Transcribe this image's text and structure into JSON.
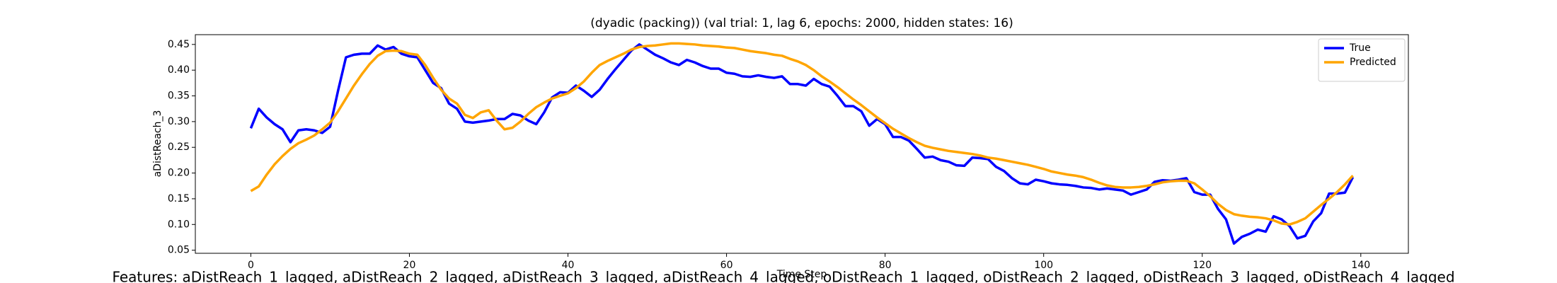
{
  "chart_data": {
    "type": "line",
    "title": "(dyadic (packing)) (val trial: 1, lag 6, epochs: 2000, hidden states: 16)",
    "xlabel": "Time Step",
    "ylabel": "aDistReach_3",
    "caption": "Features: aDistReach_1_lagged, aDistReach_2_lagged, aDistReach_3_lagged, aDistReach_4_lagged, oDistReach_1_lagged, oDistReach_2_lagged, oDistReach_3_lagged, oDistReach_4_lagged",
    "legend": "upper right",
    "xlim": [
      -7,
      146
    ],
    "ylim": [
      0.044,
      0.469
    ],
    "xticks": [
      0,
      20,
      40,
      60,
      80,
      100,
      120,
      140
    ],
    "yticks": [
      0.05,
      {
        "value": 0.1,
        "label": "0.10"
      },
      0.15,
      {
        "value": 0.2,
        "label": "0.20"
      },
      0.25,
      {
        "value": 0.3,
        "label": "0.30"
      },
      0.35,
      {
        "value": 0.4,
        "label": "0.40"
      },
      0.45
    ],
    "x": [
      0,
      1,
      2,
      3,
      4,
      5,
      6,
      7,
      8,
      9,
      10,
      11,
      12,
      13,
      14,
      15,
      16,
      17,
      18,
      19,
      20,
      21,
      22,
      23,
      24,
      25,
      26,
      27,
      28,
      29,
      30,
      31,
      32,
      33,
      34,
      35,
      36,
      37,
      38,
      39,
      40,
      41,
      42,
      43,
      44,
      45,
      46,
      47,
      48,
      49,
      50,
      51,
      52,
      53,
      54,
      55,
      56,
      57,
      58,
      59,
      60,
      61,
      62,
      63,
      64,
      65,
      66,
      67,
      68,
      69,
      70,
      71,
      72,
      73,
      74,
      75,
      76,
      77,
      78,
      79,
      80,
      81,
      82,
      83,
      84,
      85,
      86,
      87,
      88,
      89,
      90,
      91,
      92,
      93,
      94,
      95,
      96,
      97,
      98,
      99,
      100,
      101,
      102,
      103,
      104,
      105,
      106,
      107,
      108,
      109,
      110,
      111,
      112,
      113,
      114,
      115,
      116,
      117,
      118,
      119,
      120,
      121,
      122,
      123,
      124,
      125,
      126,
      127,
      128,
      129,
      130,
      131,
      132,
      133,
      134,
      135,
      136,
      137,
      138,
      139
    ],
    "series": [
      {
        "name": "True",
        "color": "#0000ff",
        "values": [
          0.287,
          0.325,
          0.308,
          0.295,
          0.285,
          0.26,
          0.283,
          0.285,
          0.283,
          0.278,
          0.29,
          0.36,
          0.425,
          0.43,
          0.432,
          0.432,
          0.448,
          0.44,
          0.445,
          0.432,
          0.427,
          0.425,
          0.4,
          0.375,
          0.365,
          0.335,
          0.325,
          0.3,
          0.298,
          0.3,
          0.302,
          0.305,
          0.305,
          0.315,
          0.312,
          0.302,
          0.295,
          0.318,
          0.347,
          0.357,
          0.356,
          0.37,
          0.36,
          0.348,
          0.362,
          0.383,
          0.402,
          0.42,
          0.438,
          0.45,
          0.44,
          0.43,
          0.423,
          0.415,
          0.41,
          0.42,
          0.415,
          0.408,
          0.403,
          0.403,
          0.395,
          0.393,
          0.388,
          0.387,
          0.39,
          0.387,
          0.385,
          0.388,
          0.373,
          0.373,
          0.37,
          0.383,
          0.373,
          0.368,
          0.35,
          0.33,
          0.33,
          0.32,
          0.292,
          0.305,
          0.295,
          0.27,
          0.27,
          0.263,
          0.247,
          0.23,
          0.232,
          0.225,
          0.222,
          0.215,
          0.214,
          0.23,
          0.229,
          0.227,
          0.212,
          0.204,
          0.19,
          0.18,
          0.178,
          0.187,
          0.184,
          0.18,
          0.178,
          0.177,
          0.175,
          0.172,
          0.171,
          0.168,
          0.17,
          0.168,
          0.166,
          0.158,
          0.163,
          0.168,
          0.183,
          0.186,
          0.185,
          0.187,
          0.19,
          0.163,
          0.158,
          0.158,
          0.13,
          0.11,
          0.063,
          0.076,
          0.082,
          0.09,
          0.086,
          0.116,
          0.11,
          0.097,
          0.073,
          0.078,
          0.106,
          0.122,
          0.16,
          0.16,
          0.162,
          0.192
        ]
      },
      {
        "name": "Predicted",
        "color": "#ffa500",
        "values": [
          0.165,
          0.174,
          0.197,
          0.217,
          0.233,
          0.247,
          0.258,
          0.265,
          0.273,
          0.285,
          0.298,
          0.32,
          0.345,
          0.37,
          0.392,
          0.412,
          0.428,
          0.437,
          0.438,
          0.437,
          0.432,
          0.43,
          0.41,
          0.385,
          0.362,
          0.345,
          0.335,
          0.313,
          0.307,
          0.318,
          0.322,
          0.302,
          0.285,
          0.288,
          0.3,
          0.315,
          0.328,
          0.337,
          0.345,
          0.35,
          0.355,
          0.365,
          0.378,
          0.395,
          0.41,
          0.418,
          0.425,
          0.432,
          0.44,
          0.445,
          0.447,
          0.448,
          0.45,
          0.452,
          0.452,
          0.451,
          0.45,
          0.448,
          0.447,
          0.446,
          0.444,
          0.443,
          0.44,
          0.437,
          0.435,
          0.433,
          0.43,
          0.428,
          0.422,
          0.417,
          0.41,
          0.4,
          0.388,
          0.378,
          0.367,
          0.355,
          0.343,
          0.332,
          0.32,
          0.308,
          0.297,
          0.286,
          0.277,
          0.268,
          0.26,
          0.253,
          0.249,
          0.246,
          0.243,
          0.241,
          0.239,
          0.237,
          0.234,
          0.23,
          0.228,
          0.225,
          0.222,
          0.219,
          0.216,
          0.212,
          0.208,
          0.203,
          0.2,
          0.197,
          0.195,
          0.192,
          0.187,
          0.181,
          0.176,
          0.173,
          0.172,
          0.172,
          0.173,
          0.175,
          0.178,
          0.182,
          0.184,
          0.185,
          0.185,
          0.18,
          0.168,
          0.155,
          0.14,
          0.128,
          0.12,
          0.117,
          0.115,
          0.114,
          0.112,
          0.108,
          0.102,
          0.1,
          0.105,
          0.112,
          0.125,
          0.138,
          0.15,
          0.163,
          0.178,
          0.195
        ]
      }
    ]
  }
}
